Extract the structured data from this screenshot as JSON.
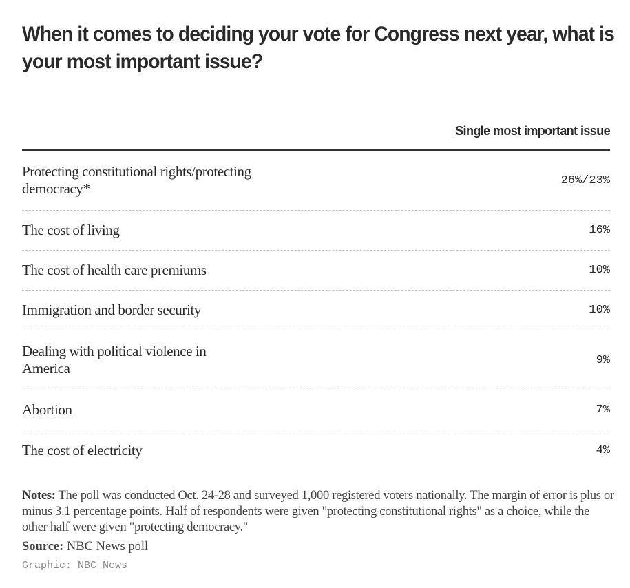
{
  "chart_data": {
    "type": "table",
    "title": "When it comes to deciding your vote for Congress next year, what is your most important issue?",
    "column_header": "Single most important issue",
    "rows": [
      {
        "label": "Protecting constitutional rights/protecting democracy*",
        "value": "26%/23%"
      },
      {
        "label": "The cost of living",
        "value": "16%"
      },
      {
        "label": "The cost of health care premiums",
        "value": "10%"
      },
      {
        "label": "Immigration and border security",
        "value": "10%"
      },
      {
        "label": "Dealing with political violence in America",
        "value": "9%"
      },
      {
        "label": "Abortion",
        "value": "7%"
      },
      {
        "label": "The cost of electricity",
        "value": "4%"
      }
    ]
  },
  "footer": {
    "notes_label": "Notes:",
    "notes": "The poll was conducted Oct. 24-28 and surveyed 1,000 registered voters nationally. The margin of error is plus or minus 3.1 percentage points. Half of respondents were given \"protecting constitutional rights\" as a choice, while the other half were given \"protecting democracy.\"",
    "source_label": "Source:",
    "source": "NBC News poll",
    "credit": "Graphic: NBC News"
  }
}
